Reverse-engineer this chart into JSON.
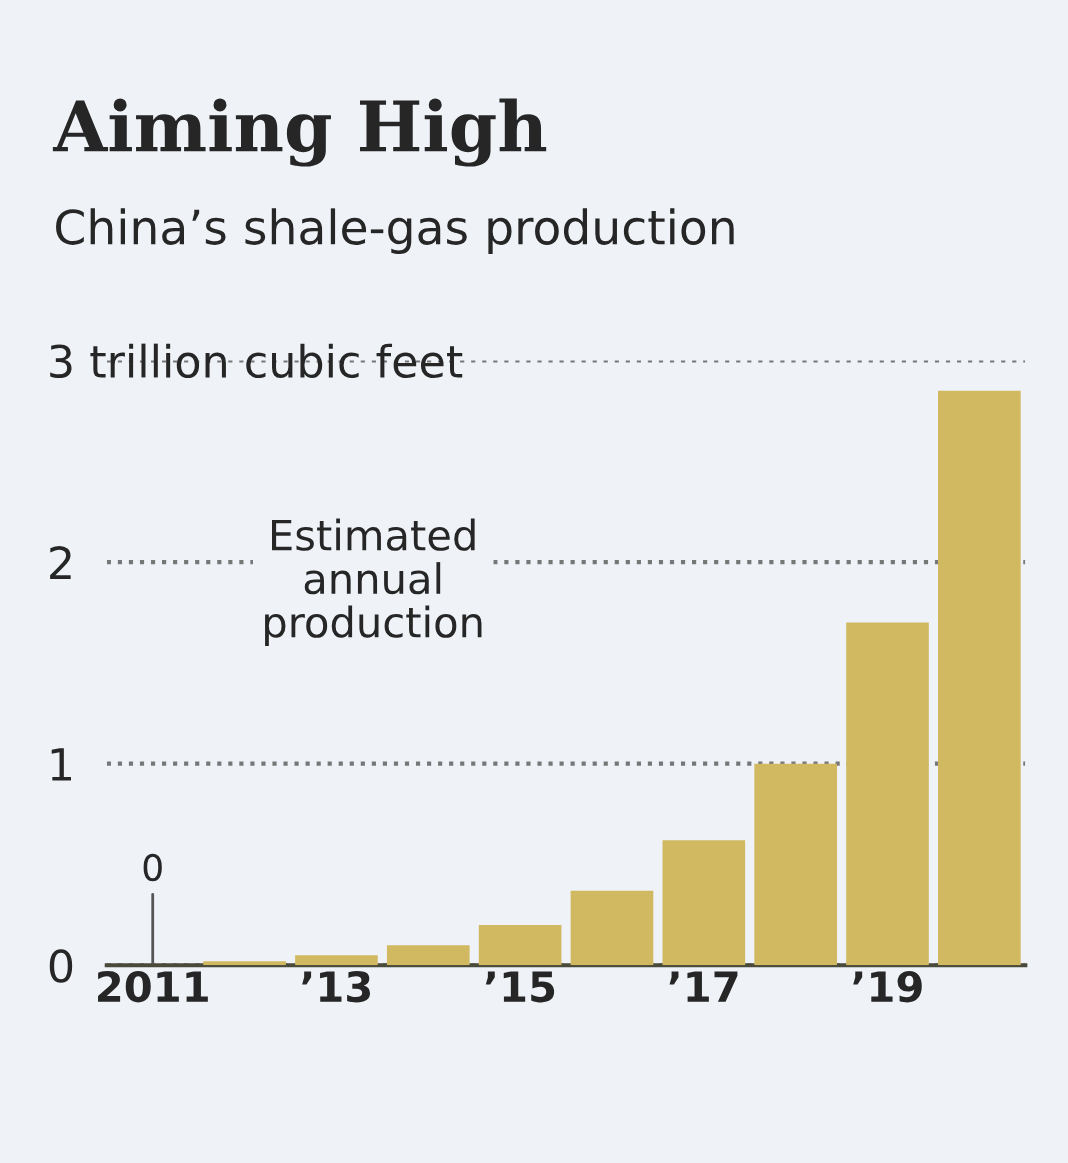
{
  "chart_data": {
    "type": "bar",
    "title": "Aiming High",
    "subtitle": "China’s shale-gas production",
    "categories": [
      "2011",
      null,
      "’13",
      null,
      "’15",
      null,
      "’17",
      null,
      "’19",
      null
    ],
    "values": [
      0,
      0.02,
      0.05,
      0.1,
      0.2,
      0.37,
      0.62,
      1.0,
      1.7,
      2.85
    ],
    "color": "#d1b962",
    "ylim": [
      0,
      3
    ],
    "yticks": [
      0,
      1,
      2,
      {
        "value": 3,
        "label": "3 trillion cubic feet"
      }
    ],
    "grid": "y",
    "annotations": [
      "Estimated\nannual\nproduction",
      {
        "text": "0",
        "x": "2011",
        "y": 0
      }
    ]
  }
}
